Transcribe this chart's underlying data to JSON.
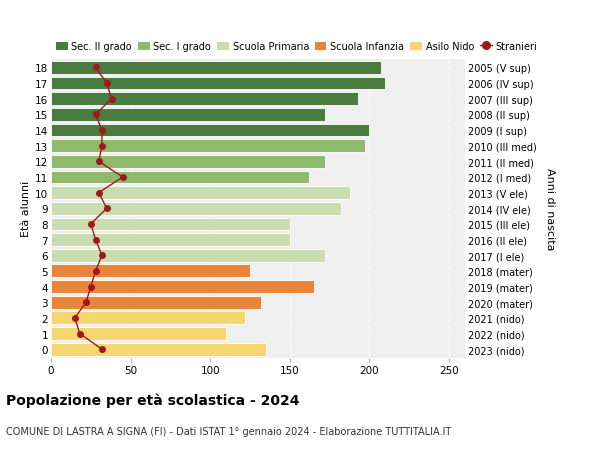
{
  "ages": [
    0,
    1,
    2,
    3,
    4,
    5,
    6,
    7,
    8,
    9,
    10,
    11,
    12,
    13,
    14,
    15,
    16,
    17,
    18
  ],
  "right_labels": [
    "2023 (nido)",
    "2022 (nido)",
    "2021 (nido)",
    "2020 (mater)",
    "2019 (mater)",
    "2018 (mater)",
    "2017 (I ele)",
    "2016 (II ele)",
    "2015 (III ele)",
    "2014 (IV ele)",
    "2013 (V ele)",
    "2012 (I med)",
    "2011 (II med)",
    "2010 (III med)",
    "2009 (I sup)",
    "2008 (II sup)",
    "2007 (III sup)",
    "2006 (IV sup)",
    "2005 (V sup)"
  ],
  "bar_values": [
    135,
    110,
    122,
    132,
    165,
    125,
    172,
    150,
    150,
    182,
    188,
    162,
    172,
    197,
    200,
    172,
    193,
    210,
    207
  ],
  "bar_colors": [
    "#f5d76e",
    "#f5d76e",
    "#f5d76e",
    "#e8853d",
    "#e8853d",
    "#e8853d",
    "#c9ddb0",
    "#c9ddb0",
    "#c9ddb0",
    "#c9ddb0",
    "#c9ddb0",
    "#8fba6e",
    "#8fba6e",
    "#8fba6e",
    "#4a7c3f",
    "#4a7c3f",
    "#4a7c3f",
    "#4a7c3f",
    "#4a7c3f"
  ],
  "stranieri_values": [
    32,
    18,
    15,
    22,
    25,
    28,
    32,
    28,
    25,
    35,
    30,
    45,
    30,
    32,
    32,
    28,
    38,
    35,
    28
  ],
  "legend_labels": [
    "Sec. II grado",
    "Sec. I grado",
    "Scuola Primaria",
    "Scuola Infanzia",
    "Asilo Nido",
    "Stranieri"
  ],
  "legend_colors": [
    "#4a7c3f",
    "#8fba6e",
    "#c9ddb0",
    "#e8853d",
    "#f5d76e",
    "#a0181b"
  ],
  "title": "Popolazione per età scolastica - 2024",
  "subtitle": "COMUNE DI LASTRA A SIGNA (FI) - Dati ISTAT 1° gennaio 2024 - Elaborazione TUTTITALIA.IT",
  "ylabel_left": "Età alunni",
  "ylabel_right": "Anni di nascita",
  "xlim": [
    0,
    260
  ],
  "xticks": [
    0,
    50,
    100,
    150,
    200,
    250
  ],
  "ylim": [
    -0.55,
    18.55
  ],
  "bg_color": "#ffffff",
  "plot_bg_color": "#efefef",
  "grid_color": "#ffffff",
  "bar_height": 0.82
}
